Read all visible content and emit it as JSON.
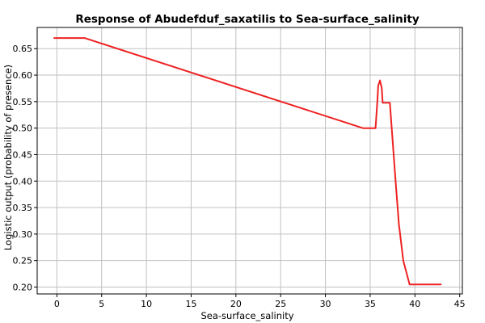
{
  "chart_data": {
    "type": "line",
    "title": "Response of Abudefduf_saxatilis to Sea-surface_salinity",
    "xlabel": "Sea-surface_salinity",
    "ylabel": "Logistic output (probability of presence)",
    "xlim": [
      -2.2,
      45.3
    ],
    "ylim": [
      0.187,
      0.69
    ],
    "xticks": [
      0,
      5,
      10,
      15,
      20,
      25,
      30,
      35,
      40,
      45
    ],
    "yticks": [
      0.2,
      0.25,
      0.3,
      0.35,
      0.4,
      0.45,
      0.5,
      0.55,
      0.6,
      0.65
    ],
    "xtick_labels": [
      "0",
      "5",
      "10",
      "15",
      "20",
      "25",
      "30",
      "35",
      "40",
      "45"
    ],
    "ytick_labels": [
      "0.20",
      "0.25",
      "0.30",
      "0.35",
      "0.40",
      "0.45",
      "0.50",
      "0.55",
      "0.60",
      "0.65"
    ],
    "grid": true,
    "series": [
      {
        "color": "#ee2222",
        "x": [
          -0.3,
          3.1,
          34.2,
          35.6,
          35.8,
          35.9,
          36.1,
          36.3,
          36.4,
          37.2,
          37.8,
          38.2,
          38.7,
          39.4,
          42.9
        ],
        "y": [
          0.67,
          0.67,
          0.5,
          0.5,
          0.55,
          0.58,
          0.59,
          0.575,
          0.548,
          0.548,
          0.41,
          0.32,
          0.25,
          0.205,
          0.205
        ]
      }
    ]
  }
}
